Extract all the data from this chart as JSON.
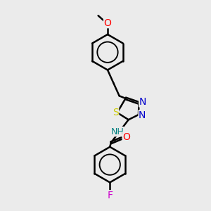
{
  "background_color": "#ebebeb",
  "bond_color": "#000000",
  "atom_colors": {
    "O": "#ff0000",
    "N": "#0000cc",
    "S": "#cccc00",
    "F": "#cc00cc",
    "NH_color": "#008080",
    "C": "#000000"
  },
  "line_width": 1.8,
  "font_size": 9,
  "figsize": [
    3.0,
    3.0
  ],
  "dpi": 100
}
